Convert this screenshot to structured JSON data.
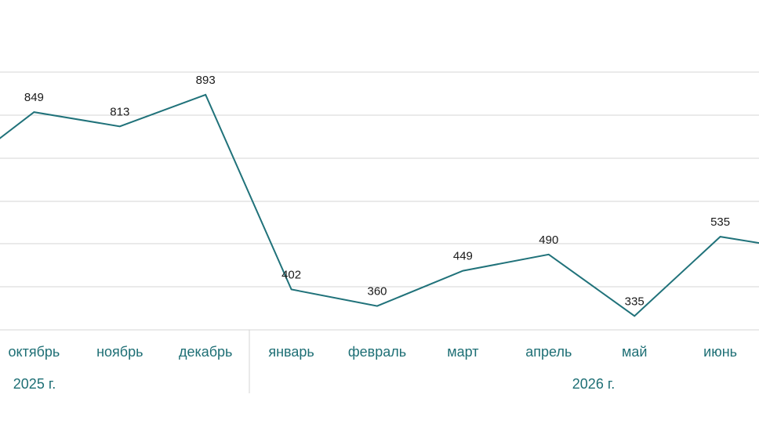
{
  "colors": {
    "line": "#20727a",
    "axis_text": "#1e6f75",
    "grid": "#d4d4d4",
    "label_text": "#1a1a1a"
  },
  "chart_data": {
    "type": "line",
    "title": "",
    "xlabel": "",
    "ylabel": "",
    "grid": true,
    "legend": "none",
    "ylim": [
      300,
      950
    ],
    "categories": [
      "",
      "октябрь",
      "ноябрь",
      "декабрь",
      "январь",
      "февраль",
      "март",
      "апрель",
      "май",
      "июнь",
      ""
    ],
    "groups": [
      {
        "label": "2025 г.",
        "categories": [
          "октябрь",
          "ноябрь",
          "декабрь"
        ]
      },
      {
        "label": "2026 г.",
        "categories": [
          "январь",
          "февраль",
          "март",
          "апрель",
          "май",
          "июнь"
        ]
      }
    ],
    "series": [
      {
        "values": [
          683,
          849,
          813,
          893,
          402,
          360,
          449,
          490,
          335,
          535,
          500
        ],
        "data_labels": [
          "",
          "849",
          "813",
          "893",
          "402",
          "360",
          "449",
          "490",
          "335",
          "535",
          ""
        ]
      }
    ]
  }
}
